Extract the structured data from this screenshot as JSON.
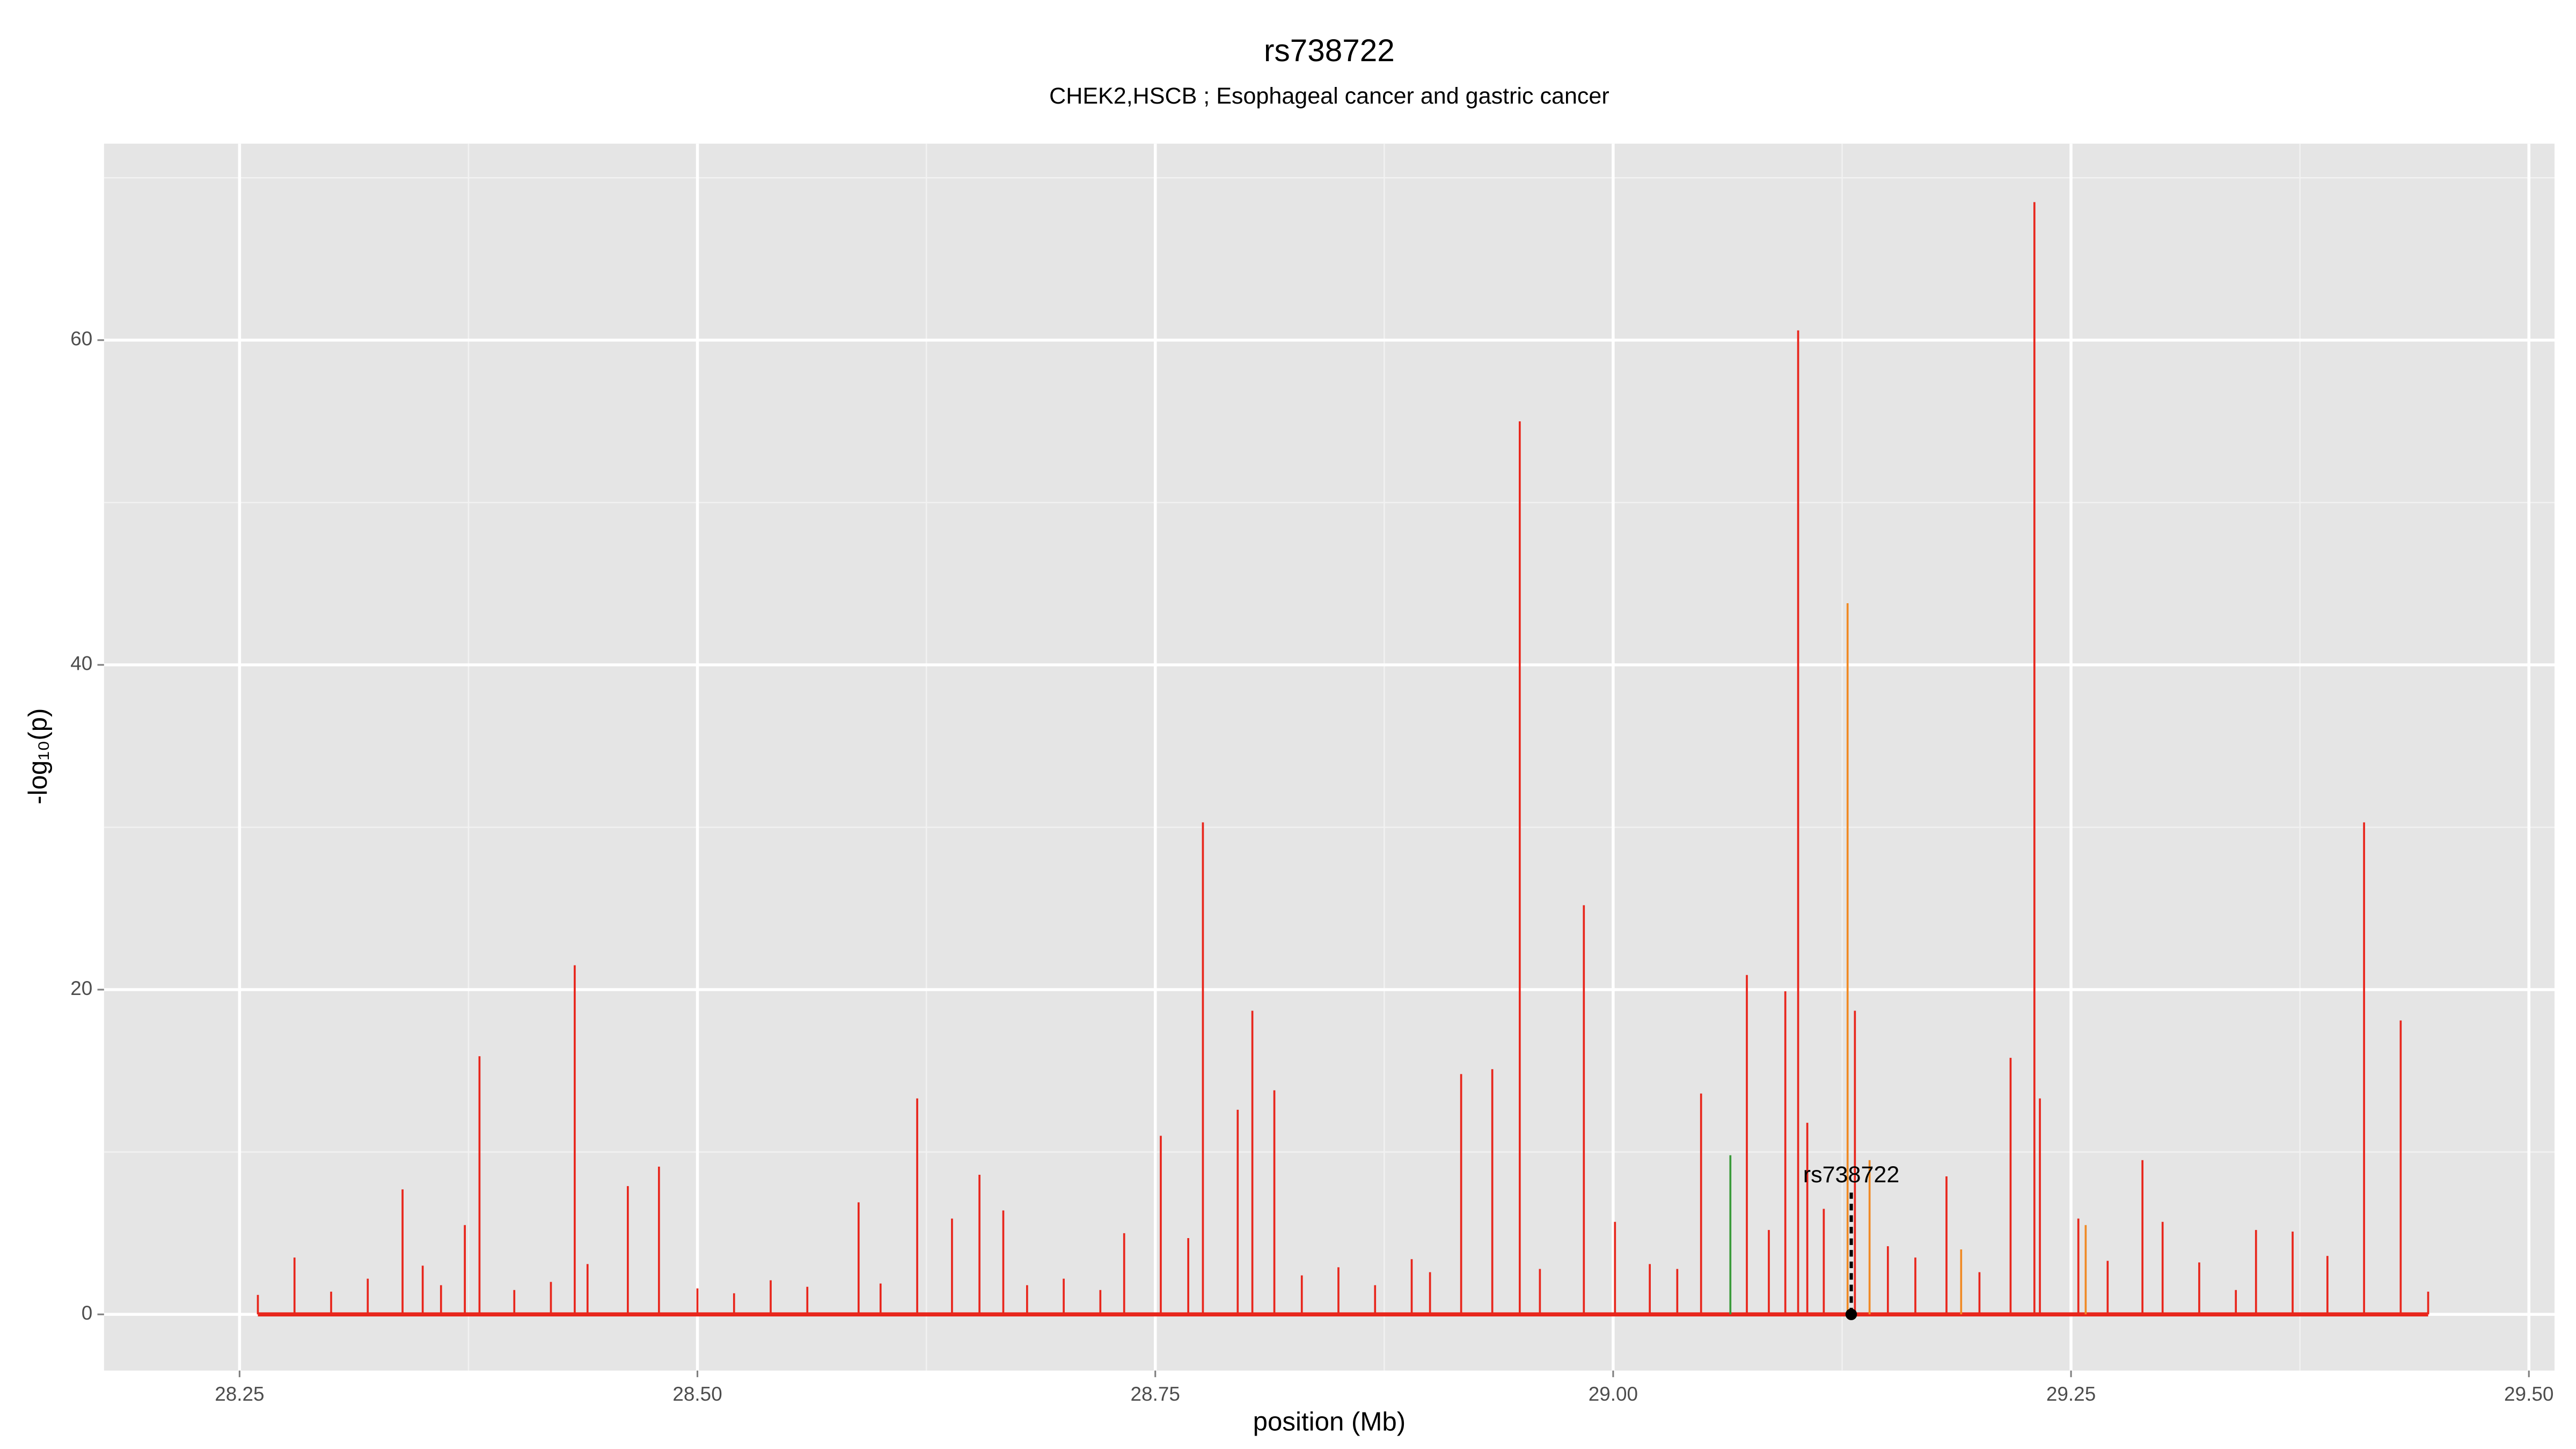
{
  "chart_data": {
    "type": "spike",
    "title": "rs738722",
    "subtitle": "CHEK2,HSCB ; Esophageal cancer and gastric cancer",
    "xlabel": "position (Mb)",
    "ylabel": "-log₁₀(p)",
    "xlim": [
      28.176,
      29.514
    ],
    "ylim": [
      -3.46,
      72.1
    ],
    "xticks": [
      {
        "value": 28.25,
        "label": "28.25"
      },
      {
        "value": 28.5,
        "label": "28.50"
      },
      {
        "value": 28.75,
        "label": "28.75"
      },
      {
        "value": 29,
        "label": "29.00"
      },
      {
        "value": 29.25,
        "label": "29.25"
      },
      {
        "value": 29.5,
        "label": "29.50"
      }
    ],
    "yticks": [
      0,
      20,
      40,
      60
    ],
    "xminor": [
      28.375,
      28.625,
      28.875,
      29.125,
      29.375
    ],
    "yminor": [
      10,
      30,
      50,
      70
    ],
    "grid": true,
    "series": [
      {
        "color": "#e8261c",
        "x": [
          28.26,
          28.28,
          28.3,
          28.32,
          28.339,
          28.35,
          28.36,
          28.373,
          28.381,
          28.4,
          28.42,
          28.433,
          28.44,
          28.462,
          28.479,
          28.5,
          28.52,
          28.54,
          28.56,
          28.588,
          28.6,
          28.62,
          28.639,
          28.654,
          28.667,
          28.68,
          28.7,
          28.72,
          28.733,
          28.753,
          28.768,
          28.776,
          28.795,
          28.803,
          28.815,
          28.83,
          28.85,
          28.87,
          28.89,
          28.9,
          28.917,
          28.934,
          28.949,
          28.96,
          28.984,
          29.001,
          29.02,
          29.035,
          29.048,
          29.073,
          29.085,
          29.094,
          29.101,
          29.106,
          29.115,
          29.132,
          29.15,
          29.165,
          29.182,
          29.2,
          29.217,
          29.23,
          29.233,
          29.254,
          29.27,
          29.289,
          29.3,
          29.32,
          29.34,
          29.351,
          29.371,
          29.39,
          29.41,
          29.43,
          29.445
        ],
        "values": [
          1.2,
          3.5,
          1.4,
          2.2,
          7.7,
          3.0,
          1.8,
          5.5,
          15.9,
          1.5,
          2.0,
          21.5,
          3.1,
          7.9,
          9.1,
          1.6,
          1.3,
          2.1,
          1.7,
          6.9,
          1.9,
          13.3,
          5.9,
          8.6,
          6.4,
          1.8,
          2.2,
          1.5,
          5.0,
          11.0,
          4.7,
          30.3,
          12.6,
          18.7,
          13.8,
          2.4,
          2.9,
          1.8,
          3.4,
          2.6,
          14.8,
          15.1,
          55.0,
          2.8,
          25.2,
          5.7,
          3.1,
          2.8,
          13.6,
          20.9,
          5.2,
          19.9,
          60.6,
          11.8,
          6.5,
          18.7,
          4.2,
          3.5,
          8.5,
          2.6,
          15.8,
          68.5,
          13.3,
          5.9,
          3.3,
          9.5,
          5.7,
          3.2,
          1.5,
          5.2,
          5.1,
          3.6,
          30.3,
          18.1,
          1.4
        ]
      },
      {
        "color": "#f08a24",
        "x": [
          29.128,
          29.14,
          29.19,
          29.258
        ],
        "values": [
          43.8,
          9.5,
          4.0,
          5.5
        ]
      },
      {
        "color": "#3a9a3a",
        "x": [
          29.064
        ],
        "values": [
          9.8
        ]
      }
    ],
    "annotation": {
      "label": "rs738722",
      "x": 29.13,
      "y": 7.5
    }
  }
}
